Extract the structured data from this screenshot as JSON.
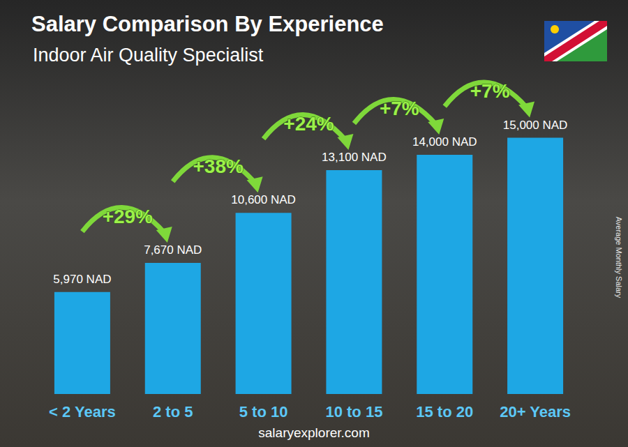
{
  "chart_data": {
    "type": "bar",
    "title": "Salary Comparison By Experience",
    "subtitle": "Indoor Air Quality Specialist",
    "y_label": "Average Monthly Salary",
    "source": "salaryexplorer.com",
    "categories": [
      "< 2 Years",
      "2 to 5",
      "5 to 10",
      "10 to 15",
      "15 to 20",
      "20+ Years"
    ],
    "values": [
      5970,
      7670,
      10600,
      13100,
      14000,
      15000
    ],
    "value_labels": [
      "5,970 NAD",
      "7,670 NAD",
      "10,600 NAD",
      "13,100 NAD",
      "14,000 NAD",
      "15,000 NAD"
    ],
    "annotations": [
      "+29%",
      "+38%",
      "+24%",
      "+7%",
      "+7%"
    ],
    "color": "#1ea7e4",
    "ylim": [
      0,
      16000
    ],
    "yticks": [
      0,
      16000
    ],
    "grid": false,
    "data_labels": true,
    "tick_labels": "x"
  }
}
